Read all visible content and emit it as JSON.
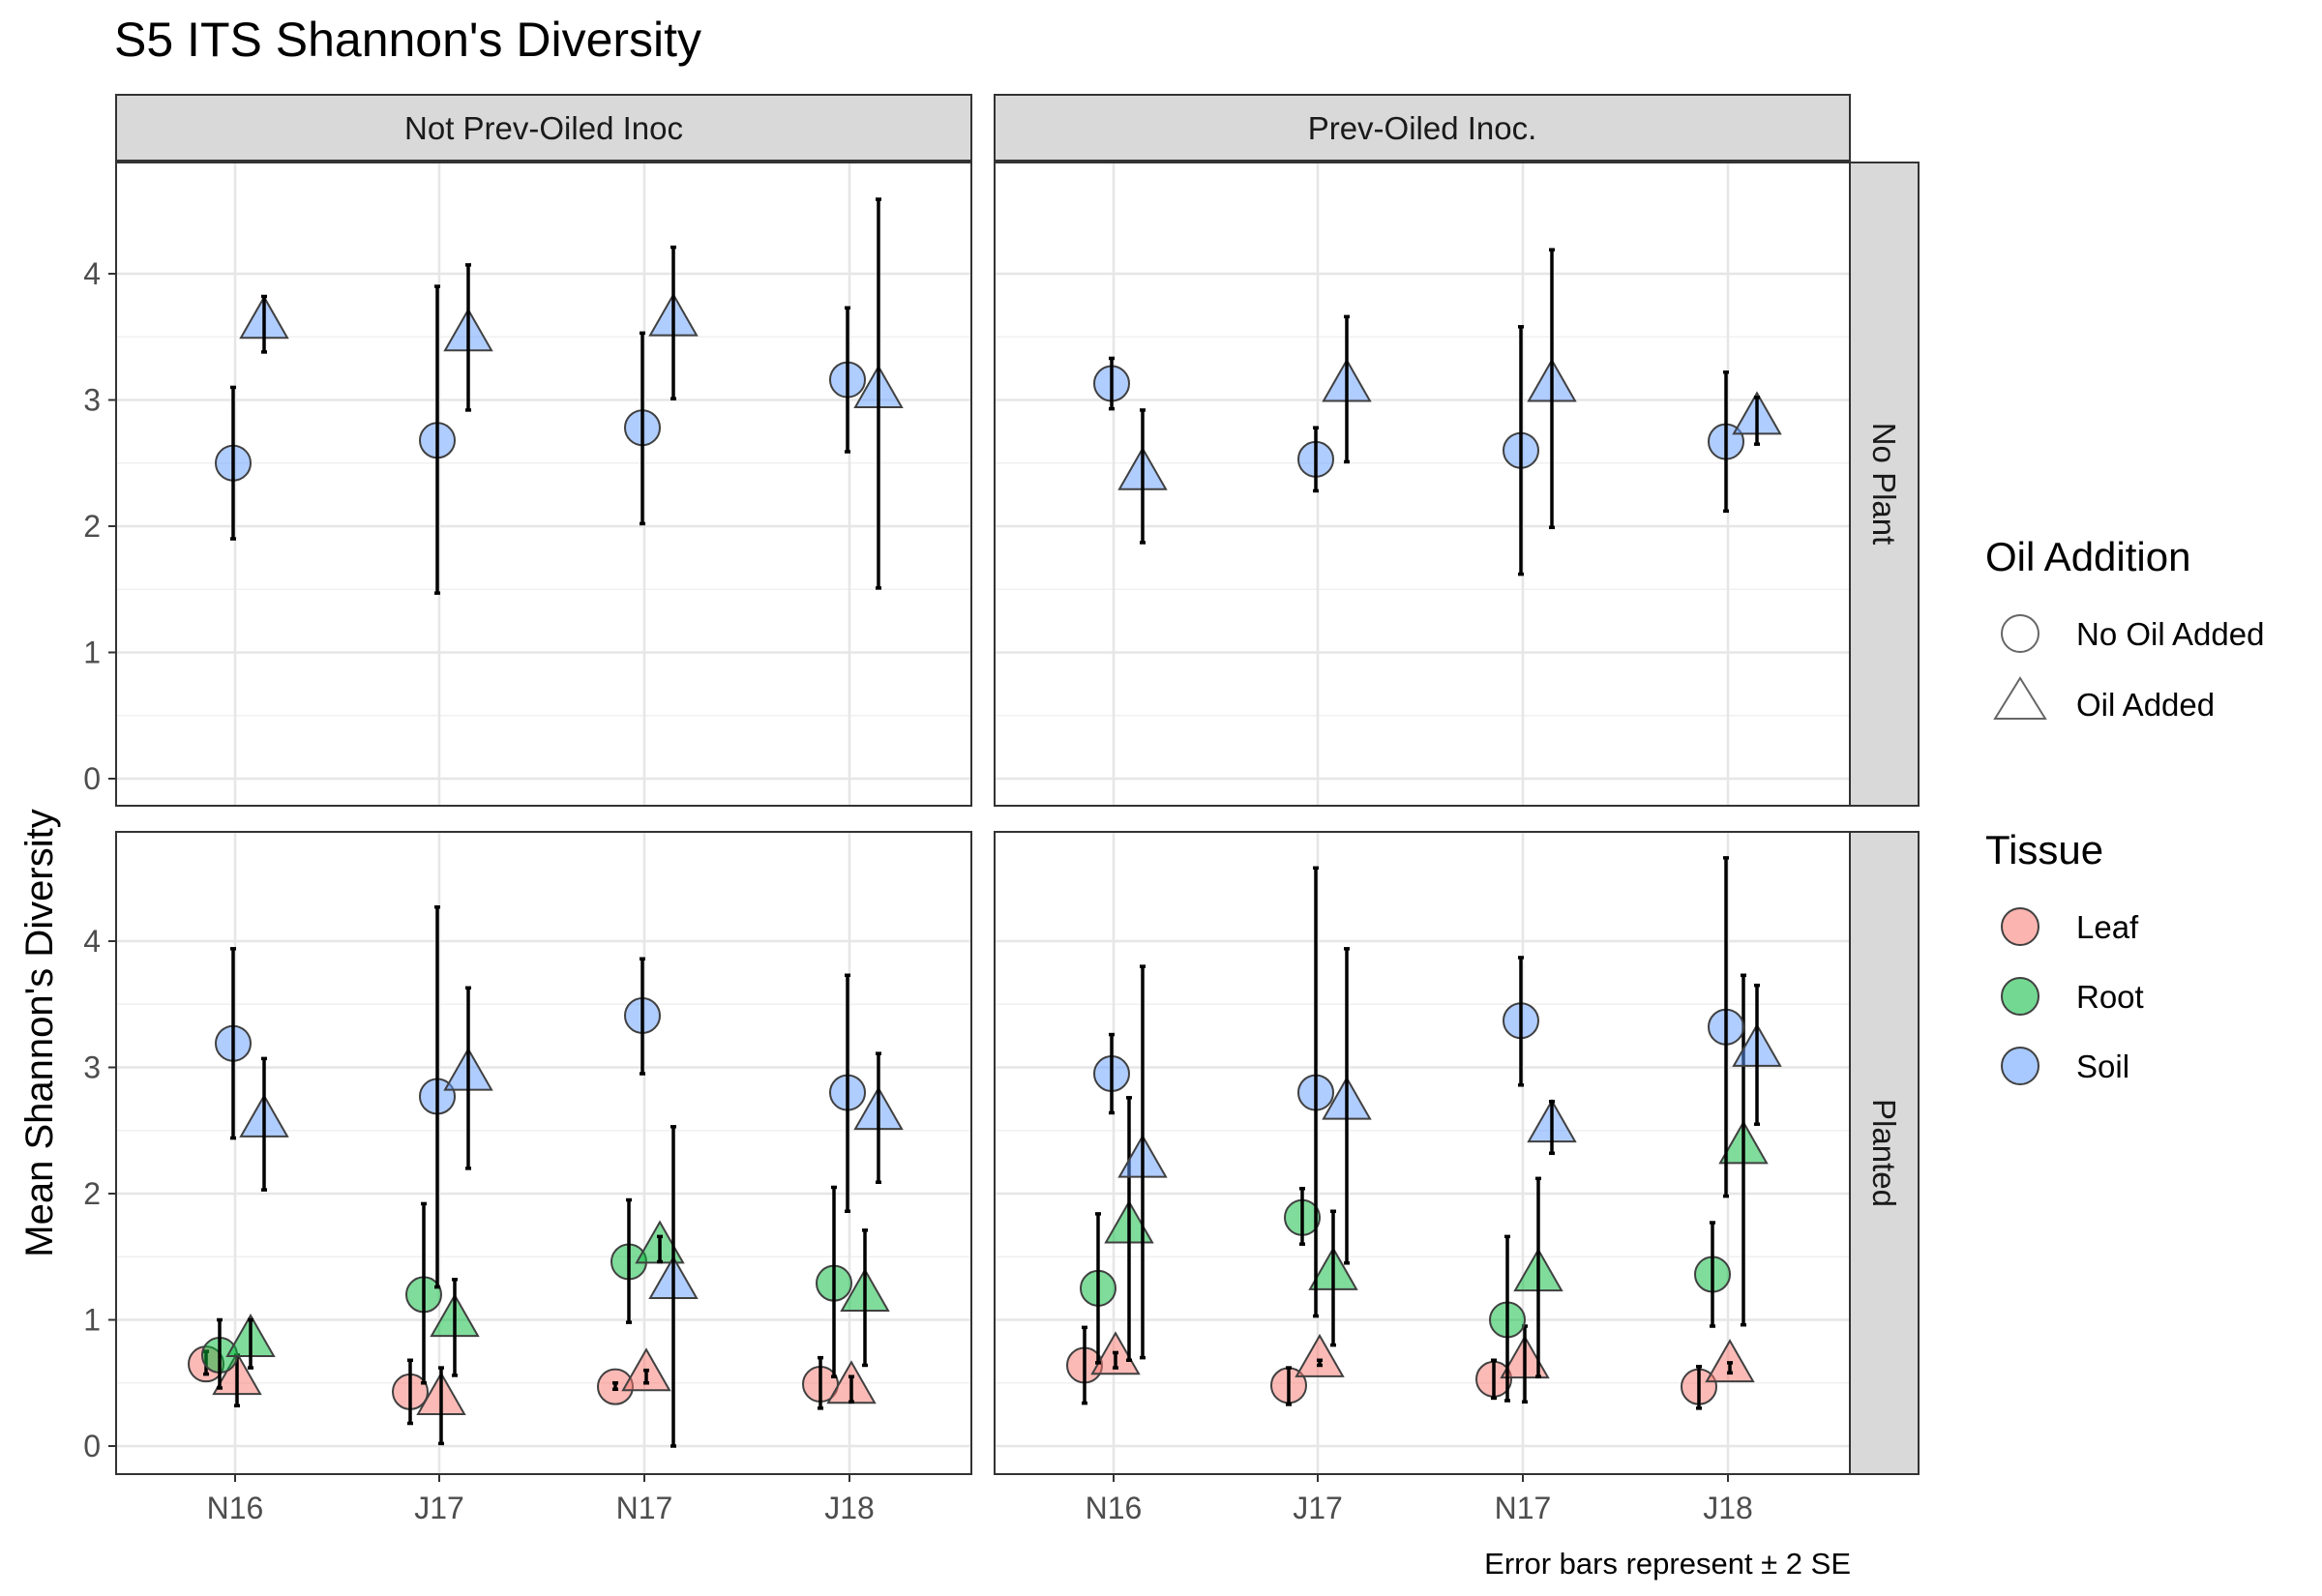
{
  "chart_data": {
    "type": "scatter",
    "title": "S5 ITS Shannon's Diversity",
    "ylabel": "Mean Shannon's Diversity",
    "xlabel": "",
    "caption": "Error bars represent ± 2 SE",
    "x_categories": [
      "N16",
      "J17",
      "N17",
      "J18"
    ],
    "y_ticks": [
      0,
      1,
      2,
      3,
      4
    ],
    "ylim": [
      -0.15,
      4.9
    ],
    "grid": true,
    "legend_position": "right",
    "col_facets": [
      "Not Prev-Oiled Inoc",
      "Prev-Oiled Inoc."
    ],
    "row_facets": [
      "No Plant",
      "Planted"
    ],
    "legends": {
      "oil": {
        "title": "Oil Addition",
        "items": [
          {
            "label": "No Oil Added",
            "shape": "circle"
          },
          {
            "label": "Oil Added",
            "shape": "triangle"
          }
        ]
      },
      "tissue": {
        "title": "Tissue",
        "items": [
          {
            "label": "Leaf",
            "color": "#F8766D"
          },
          {
            "label": "Root",
            "color": "#00BA38"
          },
          {
            "label": "Soil",
            "color": "#619CFF"
          }
        ]
      }
    },
    "tissue_colors": {
      "Leaf": "#F8766D",
      "Root": "#00BA38",
      "Soil": "#619CFF"
    },
    "points": [
      {
        "panel": "Not Prev-Oiled Inoc|No Plant",
        "x": "N16",
        "tissue": "Soil",
        "oil": "No Oil Added",
        "y": 2.5,
        "lo": 1.9,
        "hi": 3.1
      },
      {
        "panel": "Not Prev-Oiled Inoc|No Plant",
        "x": "N16",
        "tissue": "Soil",
        "oil": "Oil Added",
        "y": 3.6,
        "lo": 3.38,
        "hi": 3.82
      },
      {
        "panel": "Not Prev-Oiled Inoc|No Plant",
        "x": "J17",
        "tissue": "Soil",
        "oil": "No Oil Added",
        "y": 2.68,
        "lo": 1.47,
        "hi": 3.9
      },
      {
        "panel": "Not Prev-Oiled Inoc|No Plant",
        "x": "J17",
        "tissue": "Soil",
        "oil": "Oil Added",
        "y": 3.5,
        "lo": 2.92,
        "hi": 4.07
      },
      {
        "panel": "Not Prev-Oiled Inoc|No Plant",
        "x": "N17",
        "tissue": "Soil",
        "oil": "No Oil Added",
        "y": 2.78,
        "lo": 2.02,
        "hi": 3.53
      },
      {
        "panel": "Not Prev-Oiled Inoc|No Plant",
        "x": "N17",
        "tissue": "Soil",
        "oil": "Oil Added",
        "y": 3.62,
        "lo": 3.01,
        "hi": 4.21
      },
      {
        "panel": "Not Prev-Oiled Inoc|No Plant",
        "x": "J18",
        "tissue": "Soil",
        "oil": "No Oil Added",
        "y": 3.16,
        "lo": 2.59,
        "hi": 3.73
      },
      {
        "panel": "Not Prev-Oiled Inoc|No Plant",
        "x": "J18",
        "tissue": "Soil",
        "oil": "Oil Added",
        "y": 3.05,
        "lo": 1.51,
        "hi": 4.59
      },
      {
        "panel": "Prev-Oiled Inoc.|No Plant",
        "x": "N16",
        "tissue": "Soil",
        "oil": "No Oil Added",
        "y": 3.13,
        "lo": 2.93,
        "hi": 3.33
      },
      {
        "panel": "Prev-Oiled Inoc.|No Plant",
        "x": "N16",
        "tissue": "Soil",
        "oil": "Oil Added",
        "y": 2.4,
        "lo": 1.87,
        "hi": 2.92
      },
      {
        "panel": "Prev-Oiled Inoc.|No Plant",
        "x": "J17",
        "tissue": "Soil",
        "oil": "No Oil Added",
        "y": 2.53,
        "lo": 2.28,
        "hi": 2.78
      },
      {
        "panel": "Prev-Oiled Inoc.|No Plant",
        "x": "J17",
        "tissue": "Soil",
        "oil": "Oil Added",
        "y": 3.1,
        "lo": 2.51,
        "hi": 3.66
      },
      {
        "panel": "Prev-Oiled Inoc.|No Plant",
        "x": "N17",
        "tissue": "Soil",
        "oil": "No Oil Added",
        "y": 2.6,
        "lo": 1.62,
        "hi": 3.58
      },
      {
        "panel": "Prev-Oiled Inoc.|No Plant",
        "x": "N17",
        "tissue": "Soil",
        "oil": "Oil Added",
        "y": 3.1,
        "lo": 1.99,
        "hi": 4.19
      },
      {
        "panel": "Prev-Oiled Inoc.|No Plant",
        "x": "J18",
        "tissue": "Soil",
        "oil": "No Oil Added",
        "y": 2.67,
        "lo": 2.12,
        "hi": 3.22
      },
      {
        "panel": "Prev-Oiled Inoc.|No Plant",
        "x": "J18",
        "tissue": "Soil",
        "oil": "Oil Added",
        "y": 2.84,
        "lo": 2.65,
        "hi": 3.02
      },
      {
        "panel": "Not Prev-Oiled Inoc|Planted",
        "x": "N16",
        "tissue": "Leaf",
        "oil": "No Oil Added",
        "y": 0.65,
        "lo": 0.57,
        "hi": 0.75
      },
      {
        "panel": "Not Prev-Oiled Inoc|Planted",
        "x": "N16",
        "tissue": "Leaf",
        "oil": "Oil Added",
        "y": 0.52,
        "lo": 0.32,
        "hi": 0.72
      },
      {
        "panel": "Not Prev-Oiled Inoc|Planted",
        "x": "N16",
        "tissue": "Root",
        "oil": "No Oil Added",
        "y": 0.72,
        "lo": 0.46,
        "hi": 1.0
      },
      {
        "panel": "Not Prev-Oiled Inoc|Planted",
        "x": "N16",
        "tissue": "Root",
        "oil": "Oil Added",
        "y": 0.82,
        "lo": 0.62,
        "hi": 1.0
      },
      {
        "panel": "Not Prev-Oiled Inoc|Planted",
        "x": "N16",
        "tissue": "Soil",
        "oil": "No Oil Added",
        "y": 3.19,
        "lo": 2.44,
        "hi": 3.94
      },
      {
        "panel": "Not Prev-Oiled Inoc|Planted",
        "x": "N16",
        "tissue": "Soil",
        "oil": "Oil Added",
        "y": 2.56,
        "lo": 2.03,
        "hi": 3.07
      },
      {
        "panel": "Not Prev-Oiled Inoc|Planted",
        "x": "J17",
        "tissue": "Leaf",
        "oil": "No Oil Added",
        "y": 0.43,
        "lo": 0.18,
        "hi": 0.68
      },
      {
        "panel": "Not Prev-Oiled Inoc|Planted",
        "x": "J17",
        "tissue": "Leaf",
        "oil": "Oil Added",
        "y": 0.36,
        "lo": 0.02,
        "hi": 0.62
      },
      {
        "panel": "Not Prev-Oiled Inoc|Planted",
        "x": "J17",
        "tissue": "Root",
        "oil": "No Oil Added",
        "y": 1.2,
        "lo": 0.5,
        "hi": 1.92
      },
      {
        "panel": "Not Prev-Oiled Inoc|Planted",
        "x": "J17",
        "tissue": "Root",
        "oil": "Oil Added",
        "y": 0.98,
        "lo": 0.56,
        "hi": 1.32
      },
      {
        "panel": "Not Prev-Oiled Inoc|Planted",
        "x": "J17",
        "tissue": "Soil",
        "oil": "No Oil Added",
        "y": 2.77,
        "lo": 1.26,
        "hi": 4.27
      },
      {
        "panel": "Not Prev-Oiled Inoc|Planted",
        "x": "J17",
        "tissue": "Soil",
        "oil": "Oil Added",
        "y": 2.93,
        "lo": 2.2,
        "hi": 3.63
      },
      {
        "panel": "Not Prev-Oiled Inoc|Planted",
        "x": "N17",
        "tissue": "Leaf",
        "oil": "No Oil Added",
        "y": 0.47,
        "lo": 0.45,
        "hi": 0.5
      },
      {
        "panel": "Not Prev-Oiled Inoc|Planted",
        "x": "N17",
        "tissue": "Leaf",
        "oil": "Oil Added",
        "y": 0.55,
        "lo": 0.5,
        "hi": 0.6
      },
      {
        "panel": "Not Prev-Oiled Inoc|Planted",
        "x": "N17",
        "tissue": "Root",
        "oil": "No Oil Added",
        "y": 1.46,
        "lo": 0.98,
        "hi": 1.95
      },
      {
        "panel": "Not Prev-Oiled Inoc|Planted",
        "x": "N17",
        "tissue": "Root",
        "oil": "Oil Added",
        "y": 1.56,
        "lo": 1.46,
        "hi": 1.66
      },
      {
        "panel": "Not Prev-Oiled Inoc|Planted",
        "x": "N17",
        "tissue": "Soil",
        "oil": "No Oil Added",
        "y": 3.41,
        "lo": 2.95,
        "hi": 3.86
      },
      {
        "panel": "Not Prev-Oiled Inoc|Planted",
        "x": "N17",
        "tissue": "Soil",
        "oil": "Oil Added",
        "y": 1.28,
        "lo": 0.0,
        "hi": 2.53
      },
      {
        "panel": "Not Prev-Oiled Inoc|Planted",
        "x": "J18",
        "tissue": "Leaf",
        "oil": "No Oil Added",
        "y": 0.49,
        "lo": 0.3,
        "hi": 0.7
      },
      {
        "panel": "Not Prev-Oiled Inoc|Planted",
        "x": "J18",
        "tissue": "Leaf",
        "oil": "Oil Added",
        "y": 0.45,
        "lo": 0.35,
        "hi": 0.55
      },
      {
        "panel": "Not Prev-Oiled Inoc|Planted",
        "x": "J18",
        "tissue": "Root",
        "oil": "No Oil Added",
        "y": 1.29,
        "lo": 0.55,
        "hi": 2.05
      },
      {
        "panel": "Not Prev-Oiled Inoc|Planted",
        "x": "J18",
        "tissue": "Root",
        "oil": "Oil Added",
        "y": 1.18,
        "lo": 0.64,
        "hi": 1.71
      },
      {
        "panel": "Not Prev-Oiled Inoc|Planted",
        "x": "J18",
        "tissue": "Soil",
        "oil": "No Oil Added",
        "y": 2.8,
        "lo": 1.86,
        "hi": 3.73
      },
      {
        "panel": "Not Prev-Oiled Inoc|Planted",
        "x": "J18",
        "tissue": "Soil",
        "oil": "Oil Added",
        "y": 2.62,
        "lo": 2.09,
        "hi": 3.11
      },
      {
        "panel": "Prev-Oiled Inoc.|Planted",
        "x": "N16",
        "tissue": "Leaf",
        "oil": "No Oil Added",
        "y": 0.64,
        "lo": 0.34,
        "hi": 0.94
      },
      {
        "panel": "Prev-Oiled Inoc.|Planted",
        "x": "N16",
        "tissue": "Leaf",
        "oil": "Oil Added",
        "y": 0.68,
        "lo": 0.62,
        "hi": 0.74
      },
      {
        "panel": "Prev-Oiled Inoc.|Planted",
        "x": "N16",
        "tissue": "Root",
        "oil": "No Oil Added",
        "y": 1.25,
        "lo": 0.66,
        "hi": 1.84
      },
      {
        "panel": "Prev-Oiled Inoc.|Planted",
        "x": "N16",
        "tissue": "Root",
        "oil": "Oil Added",
        "y": 1.72,
        "lo": 0.68,
        "hi": 2.76
      },
      {
        "panel": "Prev-Oiled Inoc.|Planted",
        "x": "N16",
        "tissue": "Soil",
        "oil": "No Oil Added",
        "y": 2.95,
        "lo": 2.64,
        "hi": 3.26
      },
      {
        "panel": "Prev-Oiled Inoc.|Planted",
        "x": "N16",
        "tissue": "Soil",
        "oil": "Oil Added",
        "y": 2.24,
        "lo": 0.7,
        "hi": 3.8
      },
      {
        "panel": "Prev-Oiled Inoc.|Planted",
        "x": "J17",
        "tissue": "Leaf",
        "oil": "No Oil Added",
        "y": 0.48,
        "lo": 0.33,
        "hi": 0.62
      },
      {
        "panel": "Prev-Oiled Inoc.|Planted",
        "x": "J17",
        "tissue": "Leaf",
        "oil": "Oil Added",
        "y": 0.66,
        "lo": 0.64,
        "hi": 0.68
      },
      {
        "panel": "Prev-Oiled Inoc.|Planted",
        "x": "J17",
        "tissue": "Root",
        "oil": "No Oil Added",
        "y": 1.81,
        "lo": 1.6,
        "hi": 2.04
      },
      {
        "panel": "Prev-Oiled Inoc.|Planted",
        "x": "J17",
        "tissue": "Root",
        "oil": "Oil Added",
        "y": 1.35,
        "lo": 0.8,
        "hi": 1.86
      },
      {
        "panel": "Prev-Oiled Inoc.|Planted",
        "x": "J17",
        "tissue": "Soil",
        "oil": "No Oil Added",
        "y": 2.8,
        "lo": 1.03,
        "hi": 4.58
      },
      {
        "panel": "Prev-Oiled Inoc.|Planted",
        "x": "J17",
        "tissue": "Soil",
        "oil": "Oil Added",
        "y": 2.7,
        "lo": 1.45,
        "hi": 3.94
      },
      {
        "panel": "Prev-Oiled Inoc.|Planted",
        "x": "N17",
        "tissue": "Leaf",
        "oil": "No Oil Added",
        "y": 0.53,
        "lo": 0.38,
        "hi": 0.68
      },
      {
        "panel": "Prev-Oiled Inoc.|Planted",
        "x": "N17",
        "tissue": "Leaf",
        "oil": "Oil Added",
        "y": 0.65,
        "lo": 0.35,
        "hi": 0.95
      },
      {
        "panel": "Prev-Oiled Inoc.|Planted",
        "x": "N17",
        "tissue": "Root",
        "oil": "No Oil Added",
        "y": 1.0,
        "lo": 0.36,
        "hi": 1.66
      },
      {
        "panel": "Prev-Oiled Inoc.|Planted",
        "x": "N17",
        "tissue": "Root",
        "oil": "Oil Added",
        "y": 1.34,
        "lo": 0.55,
        "hi": 2.12
      },
      {
        "panel": "Prev-Oiled Inoc.|Planted",
        "x": "N17",
        "tissue": "Soil",
        "oil": "No Oil Added",
        "y": 3.37,
        "lo": 2.86,
        "hi": 3.87
      },
      {
        "panel": "Prev-Oiled Inoc.|Planted",
        "x": "N17",
        "tissue": "Soil",
        "oil": "Oil Added",
        "y": 2.52,
        "lo": 2.32,
        "hi": 2.73
      },
      {
        "panel": "Prev-Oiled Inoc.|Planted",
        "x": "J18",
        "tissue": "Leaf",
        "oil": "No Oil Added",
        "y": 0.47,
        "lo": 0.3,
        "hi": 0.63
      },
      {
        "panel": "Prev-Oiled Inoc.|Planted",
        "x": "J18",
        "tissue": "Leaf",
        "oil": "Oil Added",
        "y": 0.62,
        "lo": 0.58,
        "hi": 0.66
      },
      {
        "panel": "Prev-Oiled Inoc.|Planted",
        "x": "J18",
        "tissue": "Root",
        "oil": "No Oil Added",
        "y": 1.36,
        "lo": 0.95,
        "hi": 1.77
      },
      {
        "panel": "Prev-Oiled Inoc.|Planted",
        "x": "J18",
        "tissue": "Root",
        "oil": "Oil Added",
        "y": 2.35,
        "lo": 0.96,
        "hi": 3.73
      },
      {
        "panel": "Prev-Oiled Inoc.|Planted",
        "x": "J18",
        "tissue": "Soil",
        "oil": "No Oil Added",
        "y": 3.32,
        "lo": 1.98,
        "hi": 4.66
      },
      {
        "panel": "Prev-Oiled Inoc.|Planted",
        "x": "J18",
        "tissue": "Soil",
        "oil": "Oil Added",
        "y": 3.12,
        "lo": 2.55,
        "hi": 3.65
      }
    ]
  }
}
